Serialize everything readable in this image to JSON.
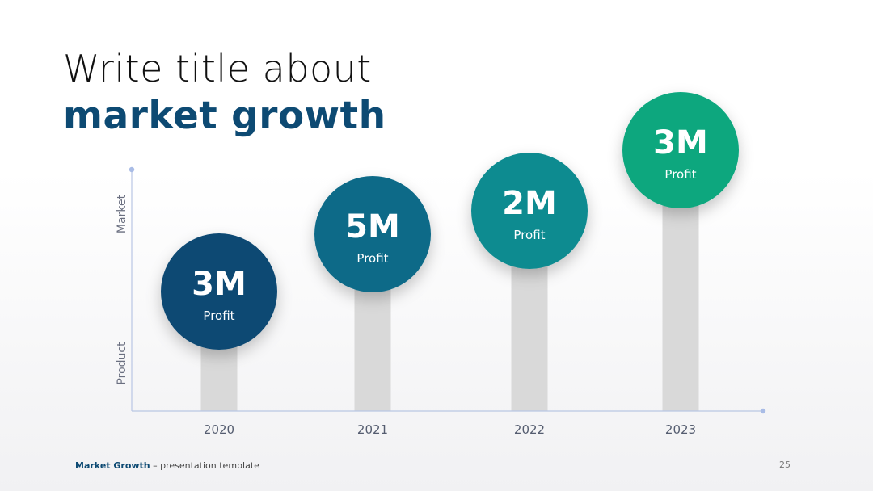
{
  "title": {
    "line1": "Write title about",
    "line2": "market growth"
  },
  "chart_data": {
    "type": "bar",
    "categories": [
      "2020",
      "2021",
      "2022",
      "2023"
    ],
    "values": [
      "3M",
      "5M",
      "2M",
      "3M"
    ],
    "point_label": "Profit",
    "ylabel_top": "Market",
    "ylabel_bottom": "Product",
    "colors": [
      "#0d4a73",
      "#0f6b88",
      "#0e8b90",
      "#09a77e"
    ]
  },
  "footer": {
    "brand": "Market Growth",
    "subtitle": " – presentation template",
    "page": "25"
  }
}
